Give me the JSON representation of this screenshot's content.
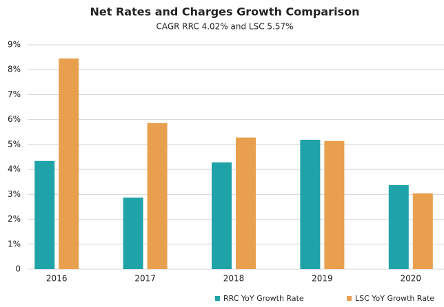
{
  "chart_data": {
    "type": "bar",
    "title": "Net Rates and Charges Growth Comparison",
    "subtitle": "CAGR RRC 4.02% and LSC 5.57%",
    "categories": [
      "2016",
      "2017",
      "2018",
      "2019",
      "2020"
    ],
    "series": [
      {
        "name": "RRC YoY Growth Rate",
        "color": "#1fa3a8",
        "values": [
          4.34,
          2.87,
          4.28,
          5.19,
          3.37
        ]
      },
      {
        "name": "LSC YoY Growth Rate",
        "color": "#e8a04f",
        "values": [
          8.45,
          5.86,
          5.28,
          5.14,
          3.04
        ]
      }
    ],
    "ylim": [
      0,
      9
    ],
    "yticks": [
      0,
      {
        "value": 1,
        "label": "1%"
      },
      {
        "value": 2,
        "label": "2%"
      },
      {
        "value": 3,
        "label": "3%"
      },
      {
        "value": 4,
        "label": "4%"
      },
      {
        "value": 5,
        "label": "5%"
      },
      {
        "value": 6,
        "label": "6%"
      },
      {
        "value": 7,
        "label": "7%"
      },
      {
        "value": 8,
        "label": "8%"
      },
      {
        "value": 9,
        "label": "9%"
      }
    ],
    "grid": true,
    "legend": "bottom"
  }
}
